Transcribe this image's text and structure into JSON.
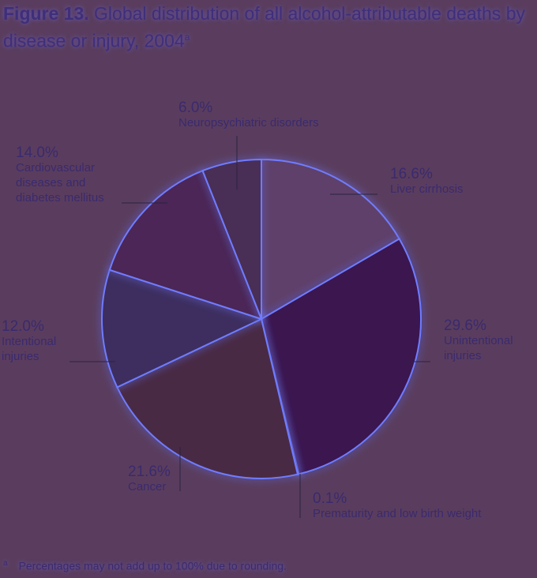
{
  "title": {
    "figure": "Figure 13.",
    "text": "Global distribution of all alcohol-attributable deaths by disease or injury, 2004",
    "superscript": "a"
  },
  "footnote": {
    "mark": "a",
    "text": "Percentages may not add up to 100% due to rounding."
  },
  "chart_data": {
    "type": "pie",
    "title": "Global distribution of all alcohol-attributable deaths by disease or injury, 2004",
    "slices": [
      {
        "label": "Liver cirrhosis",
        "pct_label": "16.6%",
        "value": 16.6,
        "color": "#5e416a"
      },
      {
        "label": "Unintentional injuries",
        "pct_label": "29.6%",
        "value": 29.6,
        "color": "#3a1550"
      },
      {
        "label": "Prematurity and low birth weight",
        "pct_label": "0.1%",
        "value": 0.1,
        "color": "#4a3a7a"
      },
      {
        "label": "Cancer",
        "pct_label": "21.6%",
        "value": 21.6,
        "color": "#4a2a44"
      },
      {
        "label": "Intentional injuries",
        "pct_label": "12.0%",
        "value": 12.0,
        "color": "#3e2f5e"
      },
      {
        "label": "Cardiovascular diseases and diabetes mellitus",
        "pct_label": "14.0%",
        "value": 14.0,
        "color": "#4c2656"
      },
      {
        "label": "Neuropsychiatric disorders",
        "pct_label": "6.0%",
        "value": 6.0,
        "color": "#4a2d55"
      }
    ]
  }
}
